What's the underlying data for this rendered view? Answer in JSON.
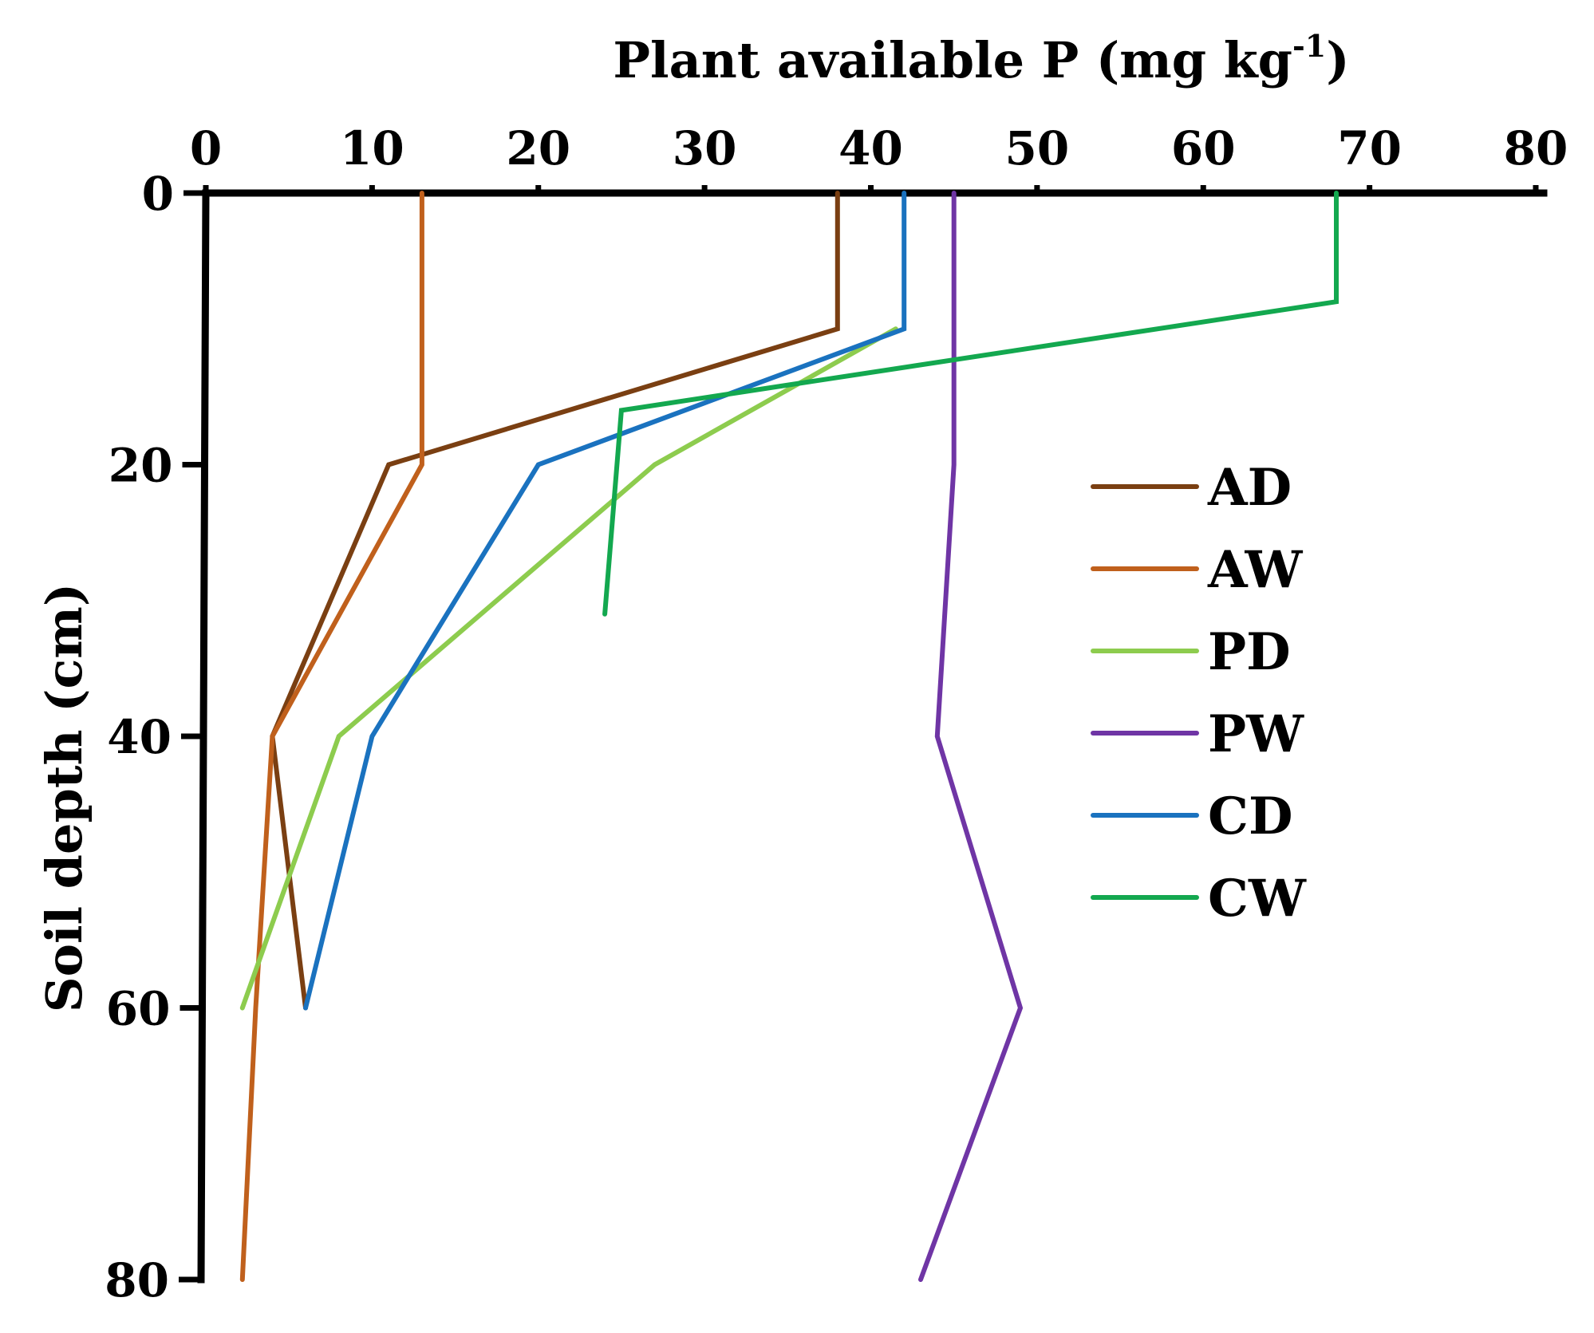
{
  "chart_data": {
    "type": "line",
    "orientation": "depth-profile",
    "title": "",
    "xlabel_main": "Plant available P (mg kg",
    "xlabel_sup": "-1",
    "xlabel_close": ")",
    "ylabel": "Soil depth (cm)",
    "xlim": [
      0,
      80
    ],
    "ylim": [
      0,
      80
    ],
    "x_ticks": [
      "0",
      "10",
      "20",
      "30",
      "40",
      "50",
      "60",
      "70",
      "80"
    ],
    "y_ticks": [
      "0",
      "20",
      "40",
      "60",
      "80"
    ],
    "x_tick_values": [
      0,
      10,
      20,
      30,
      40,
      50,
      60,
      70,
      80
    ],
    "y_tick_values": [
      0,
      20,
      40,
      60,
      80
    ],
    "legend_position": "right",
    "series": [
      {
        "name": "AD",
        "color": "#7a3f12",
        "points": [
          [
            38,
            0
          ],
          [
            38,
            10
          ],
          [
            11,
            20
          ],
          [
            4,
            40
          ],
          [
            6,
            60
          ]
        ]
      },
      {
        "name": "AW",
        "color": "#c0601c",
        "points": [
          [
            13,
            0
          ],
          [
            13,
            20
          ],
          [
            4,
            40
          ],
          [
            3,
            60
          ],
          [
            2.2,
            80
          ]
        ]
      },
      {
        "name": "PD",
        "color": "#8dcc4e",
        "points": [
          [
            41.5,
            10
          ],
          [
            27,
            20
          ],
          [
            8,
            40
          ],
          [
            2.2,
            60
          ]
        ]
      },
      {
        "name": "PW",
        "color": "#6f35a5",
        "points": [
          [
            45,
            0
          ],
          [
            45,
            20
          ],
          [
            44,
            40
          ],
          [
            49,
            60
          ],
          [
            43,
            80
          ]
        ]
      },
      {
        "name": "CD",
        "color": "#1a72bf",
        "points": [
          [
            42,
            0
          ],
          [
            42,
            10
          ],
          [
            20,
            20
          ],
          [
            10,
            40
          ],
          [
            6,
            60
          ]
        ]
      },
      {
        "name": "CW",
        "color": "#13a84f",
        "points": [
          [
            68,
            0
          ],
          [
            68,
            8
          ],
          [
            25,
            16
          ],
          [
            24,
            31
          ]
        ]
      }
    ]
  }
}
